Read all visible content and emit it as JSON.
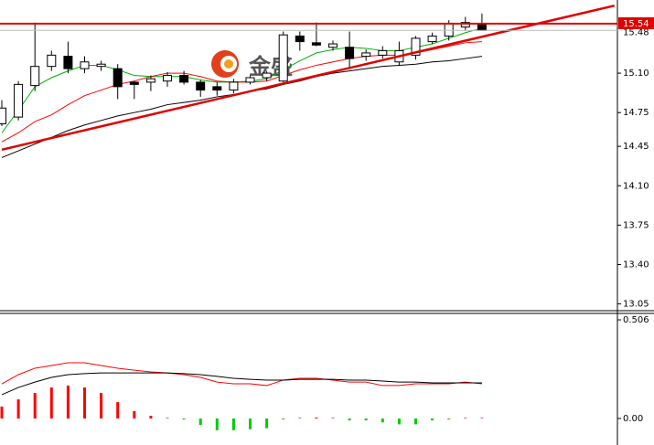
{
  "watermark": "金盛",
  "chart_data": [
    {
      "type": "candlestick",
      "categories": [
        null,
        null,
        null,
        null,
        null,
        null,
        null,
        null,
        null,
        null,
        null,
        null,
        null,
        null,
        null,
        null,
        null,
        null,
        null,
        null,
        null,
        null,
        null,
        null,
        null,
        null,
        null,
        null,
        null,
        null
      ],
      "open": [
        14.65,
        14.71,
        14.99,
        15.16,
        15.25,
        15.14,
        15.16,
        15.14,
        15.02,
        15.02,
        15.03,
        15.08,
        15.02,
        14.98,
        14.95,
        15.02,
        15.06,
        15.03,
        15.43,
        15.37,
        15.33,
        15.33,
        15.25,
        15.26,
        15.2,
        15.26,
        15.38,
        15.43,
        15.51,
        15.54
      ],
      "high": [
        14.86,
        15.03,
        15.55,
        15.3,
        15.38,
        15.25,
        15.21,
        15.18,
        15.03,
        15.08,
        15.11,
        15.12,
        15.04,
        15.02,
        15.05,
        15.08,
        15.12,
        15.47,
        15.47,
        15.55,
        15.39,
        15.47,
        15.31,
        15.34,
        15.38,
        15.43,
        15.46,
        15.57,
        15.6,
        15.63
      ],
      "low": [
        14.63,
        14.68,
        14.94,
        15.12,
        15.1,
        15.1,
        15.12,
        14.87,
        14.87,
        14.94,
        14.98,
        15.0,
        14.89,
        14.9,
        14.92,
        15.0,
        15.03,
        15.02,
        15.3,
        15.34,
        15.3,
        15.14,
        15.21,
        15.23,
        15.17,
        15.22,
        15.36,
        15.39,
        15.48,
        15.48
      ],
      "close": [
        14.79,
        15.0,
        15.16,
        15.26,
        15.14,
        15.2,
        15.18,
        14.98,
        15.0,
        15.05,
        15.08,
        15.02,
        14.95,
        14.95,
        15.02,
        15.06,
        15.1,
        15.44,
        15.38,
        15.35,
        15.36,
        15.23,
        15.28,
        15.3,
        15.3,
        15.41,
        15.43,
        15.54,
        15.55,
        15.48
      ],
      "up_color": "#ffffff",
      "down_color": "#000000",
      "edge_color": "#000000",
      "lines": [
        {
          "color": "#00b000",
          "values": [
            14.57,
            14.77,
            14.98,
            15.06,
            15.12,
            15.17,
            15.17,
            15.13,
            15.08,
            15.07,
            15.07,
            15.07,
            15.04,
            15.02,
            15.02,
            15.03,
            15.05,
            15.13,
            15.21,
            15.28,
            15.31,
            15.33,
            15.32,
            15.3,
            15.3,
            15.33,
            15.36,
            15.41,
            15.46,
            15.5
          ]
        },
        {
          "color": "#ff0000",
          "values": [
            14.49,
            14.57,
            14.67,
            14.73,
            14.82,
            14.9,
            14.95,
            15.0,
            15.03,
            15.07,
            15.1,
            15.1,
            15.07,
            15.03,
            15.02,
            15.02,
            15.03,
            15.08,
            15.13,
            15.17,
            15.2,
            15.23,
            15.25,
            15.26,
            15.26,
            15.28,
            15.31,
            15.34,
            15.37,
            15.38
          ]
        },
        {
          "color": "#000000",
          "values": [
            14.35,
            14.41,
            14.47,
            14.53,
            14.59,
            14.64,
            14.68,
            14.72,
            14.75,
            14.78,
            14.82,
            14.84,
            14.86,
            14.89,
            14.91,
            14.94,
            14.96,
            15.0,
            15.03,
            15.07,
            15.1,
            15.12,
            15.14,
            15.16,
            15.17,
            15.18,
            15.2,
            15.21,
            15.23,
            15.25
          ]
        }
      ],
      "level": 15.54,
      "level_color": "#e00000",
      "last_price": 15.48,
      "trendline": {
        "x": [
          0,
          37
        ],
        "values": [
          14.42,
          15.7
        ],
        "color": "#e00000"
      },
      "ylim": [
        12.99,
        15.75
      ],
      "yticks": [
        13.05,
        {
          "value": 13.4,
          "label": "13.40"
        },
        13.75,
        {
          "value": 14.1,
          "label": "14.10"
        },
        14.45,
        14.75,
        {
          "value": 15.1,
          "label": "15.10"
        }
      ]
    },
    {
      "type": "macd",
      "histogram": [
        0.061,
        0.098,
        0.131,
        0.159,
        0.169,
        0.159,
        0.131,
        0.084,
        0.038,
        0.014,
        0.003,
        -0.005,
        -0.033,
        -0.06,
        -0.06,
        -0.055,
        -0.05,
        -0.005,
        0.003,
        0.005,
        0.003,
        -0.01,
        -0.01,
        -0.02,
        -0.03,
        -0.03,
        -0.01,
        -0.005,
        0.003,
        0.003
      ],
      "up_color": "#ff0000",
      "down_color": "#00cc00",
      "lines": [
        {
          "color": "#ff0000",
          "values": [
            0.178,
            0.225,
            0.258,
            0.272,
            0.286,
            0.286,
            0.272,
            0.258,
            0.248,
            0.239,
            0.234,
            0.225,
            0.211,
            0.187,
            0.178,
            0.178,
            0.169,
            0.197,
            0.206,
            0.206,
            0.197,
            0.187,
            0.187,
            0.169,
            0.169,
            0.178,
            0.178,
            0.178,
            0.187,
            0.178
          ]
        },
        {
          "color": "#000000",
          "values": [
            0.122,
            0.159,
            0.187,
            0.211,
            0.225,
            0.23,
            0.234,
            0.234,
            0.234,
            0.234,
            0.234,
            0.23,
            0.225,
            0.216,
            0.206,
            0.201,
            0.197,
            0.197,
            0.201,
            0.201,
            0.201,
            0.197,
            0.197,
            0.192,
            0.187,
            0.187,
            0.183,
            0.183,
            0.183,
            0.183
          ]
        }
      ],
      "ylim": [
        -0.136,
        0.539
      ],
      "yticks": [
        {
          "value": 0,
          "label": "0.00"
        },
        0.506
      ]
    }
  ]
}
